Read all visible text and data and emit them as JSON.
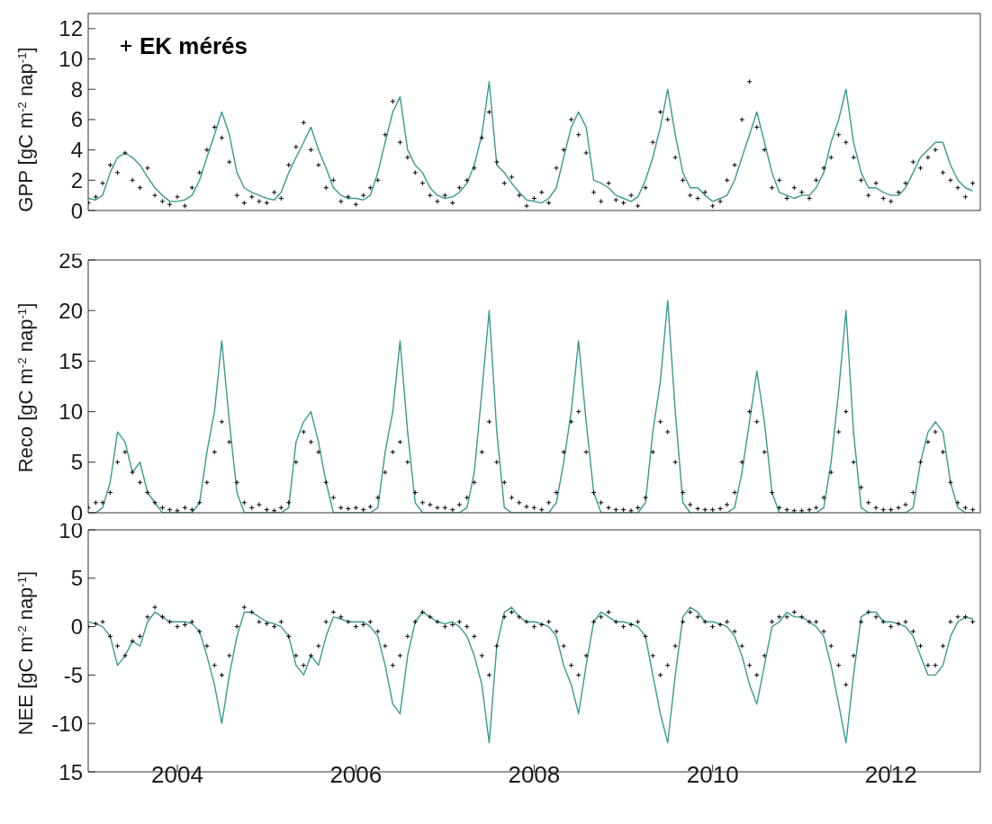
{
  "chart_data": [
    {
      "type": "line",
      "ylabel": "GPP [gC m$^{-2}$ nap$^{-1}$]",
      "xlim": [
        "2003",
        "2013"
      ],
      "xticks": [
        "2004",
        "2006",
        "2008",
        "2010",
        "2012"
      ],
      "ylim": [
        0,
        13
      ],
      "yticks": [
        0,
        2,
        4,
        6,
        8,
        10,
        12
      ],
      "tick_labels": "y",
      "grid": false,
      "legend": "top left",
      "x": [
        "2003-01",
        "2003-02",
        "2003-03",
        "2003-04",
        "2003-05",
        "2003-06",
        "2003-07",
        "2003-08",
        "2003-09",
        "2003-10",
        "2003-11",
        "2003-12",
        "2004-01",
        "2004-02",
        "2004-03",
        "2004-04",
        "2004-05",
        "2004-06",
        "2004-07",
        "2004-08",
        "2004-09",
        "2004-10",
        "2004-11",
        "2004-12",
        "2005-01",
        "2005-02",
        "2005-03",
        "2005-04",
        "2005-05",
        "2005-06",
        "2005-07",
        "2005-08",
        "2005-09",
        "2005-10",
        "2005-11",
        "2005-12",
        "2006-01",
        "2006-02",
        "2006-03",
        "2006-04",
        "2006-05",
        "2006-06",
        "2006-07",
        "2006-08",
        "2006-09",
        "2006-10",
        "2006-11",
        "2006-12",
        "2007-01",
        "2007-02",
        "2007-03",
        "2007-04",
        "2007-05",
        "2007-06",
        "2007-07",
        "2007-08",
        "2007-09",
        "2007-10",
        "2007-11",
        "2007-12",
        "2008-01",
        "2008-02",
        "2008-03",
        "2008-04",
        "2008-05",
        "2008-06",
        "2008-07",
        "2008-08",
        "2008-09",
        "2008-10",
        "2008-11",
        "2008-12",
        "2009-01",
        "2009-02",
        "2009-03",
        "2009-04",
        "2009-05",
        "2009-06",
        "2009-07",
        "2009-08",
        "2009-09",
        "2009-10",
        "2009-11",
        "2009-12",
        "2010-01",
        "2010-02",
        "2010-03",
        "2010-04",
        "2010-05",
        "2010-06",
        "2010-07",
        "2010-08",
        "2010-09",
        "2010-10",
        "2010-11",
        "2010-12",
        "2011-01",
        "2011-02",
        "2011-03",
        "2011-04",
        "2011-05",
        "2011-06",
        "2011-07",
        "2011-08",
        "2011-09",
        "2011-10",
        "2011-11",
        "2011-12",
        "2012-01",
        "2012-02",
        "2012-03",
        "2012-04",
        "2012-05",
        "2012-06",
        "2012-07",
        "2012-08",
        "2012-09",
        "2012-10",
        "2012-11",
        "2012-12"
      ],
      "series": [
        {
          "color": "#3a9a8f",
          "values": [
            0.8,
            0.7,
            1.0,
            2.5,
            3.5,
            3.8,
            3.5,
            3.0,
            2.2,
            1.5,
            1.0,
            0.6,
            0.6,
            0.7,
            1.0,
            2.0,
            3.5,
            5.0,
            6.5,
            5.0,
            2.5,
            1.5,
            1.2,
            1.0,
            0.8,
            0.7,
            1.2,
            2.5,
            3.5,
            4.5,
            5.5,
            4.0,
            2.8,
            1.5,
            1.0,
            0.8,
            0.8,
            0.7,
            1.0,
            2.5,
            4.5,
            6.5,
            7.5,
            4.0,
            3.0,
            2.5,
            1.5,
            1.0,
            0.8,
            0.9,
            1.2,
            1.8,
            3.0,
            5.0,
            8.5,
            3.0,
            2.5,
            1.8,
            1.2,
            0.7,
            0.6,
            0.5,
            0.8,
            1.5,
            3.5,
            5.5,
            6.5,
            5.5,
            2.0,
            1.8,
            1.5,
            1.0,
            0.8,
            0.6,
            0.9,
            2.0,
            3.5,
            5.5,
            8.0,
            5.0,
            2.5,
            1.5,
            1.5,
            1.0,
            0.6,
            0.8,
            1.0,
            2.0,
            3.5,
            5.0,
            6.5,
            4.5,
            2.5,
            1.2,
            1.0,
            0.8,
            1.0,
            1.0,
            1.5,
            2.5,
            4.5,
            6.0,
            8.0,
            4.5,
            2.5,
            1.5,
            1.5,
            1.2,
            1.0,
            1.0,
            1.5,
            2.5,
            3.5,
            4.0,
            4.5,
            4.5,
            3.0,
            2.0,
            1.5,
            1.3
          ]
        },
        {
          "type": "scatter",
          "name": "EK mérés",
          "color": "#000000",
          "marker": "cross",
          "values": [
            0.5,
            0.9,
            1.8,
            3.0,
            2.5,
            3.8,
            2.0,
            1.5,
            2.8,
            1.0,
            0.6,
            0.4,
            0.9,
            0.3,
            1.5,
            2.5,
            4.0,
            5.5,
            4.8,
            3.2,
            1.0,
            0.5,
            0.9,
            0.6,
            0.5,
            1.2,
            0.8,
            3.0,
            4.2,
            5.8,
            4.0,
            3.0,
            1.5,
            2.0,
            0.6,
            0.9,
            0.4,
            1.0,
            1.5,
            2.0,
            5.0,
            7.2,
            4.5,
            3.5,
            2.5,
            1.8,
            1.0,
            0.6,
            1.0,
            0.5,
            1.5,
            2.0,
            2.8,
            4.8,
            6.5,
            3.2,
            1.8,
            2.2,
            1.0,
            0.3,
            0.8,
            1.2,
            0.5,
            2.8,
            4.0,
            6.0,
            5.0,
            3.8,
            1.2,
            0.6,
            1.8,
            0.7,
            0.5,
            1.0,
            0.3,
            1.5,
            4.5,
            6.5,
            6.0,
            3.5,
            2.0,
            1.0,
            0.8,
            1.2,
            0.3,
            0.6,
            2.0,
            3.0,
            6.0,
            8.5,
            5.5,
            4.0,
            1.5,
            2.0,
            0.8,
            1.5,
            1.2,
            0.8,
            2.0,
            2.8,
            3.5,
            5.0,
            4.5,
            3.5,
            2.0,
            1.0,
            1.8,
            0.8,
            0.6,
            1.2,
            1.8,
            3.2,
            2.8,
            3.5,
            4.0,
            2.5,
            2.0,
            1.5,
            0.9,
            1.8
          ]
        }
      ]
    },
    {
      "type": "line",
      "ylabel": "Reco [gC m$^{-2}$ nap$^{-1}$]",
      "xlim": [
        "2003",
        "2013"
      ],
      "xticks": [
        "2004",
        "2006",
        "2008",
        "2010",
        "2012"
      ],
      "ylim": [
        0,
        25
      ],
      "yticks": [
        0,
        5,
        10,
        15,
        20,
        25
      ],
      "tick_labels": "y",
      "grid": false,
      "x": [
        "2003-01",
        "2003-02",
        "2003-03",
        "2003-04",
        "2003-05",
        "2003-06",
        "2003-07",
        "2003-08",
        "2003-09",
        "2003-10",
        "2003-11",
        "2003-12",
        "2004-01",
        "2004-02",
        "2004-03",
        "2004-04",
        "2004-05",
        "2004-06",
        "2004-07",
        "2004-08",
        "2004-09",
        "2004-10",
        "2004-11",
        "2004-12",
        "2005-01",
        "2005-02",
        "2005-03",
        "2005-04",
        "2005-05",
        "2005-06",
        "2005-07",
        "2005-08",
        "2005-09",
        "2005-10",
        "2005-11",
        "2005-12",
        "2006-01",
        "2006-02",
        "2006-03",
        "2006-04",
        "2006-05",
        "2006-06",
        "2006-07",
        "2006-08",
        "2006-09",
        "2006-10",
        "2006-11",
        "2006-12",
        "2007-01",
        "2007-02",
        "2007-03",
        "2007-04",
        "2007-05",
        "2007-06",
        "2007-07",
        "2007-08",
        "2007-09",
        "2007-10",
        "2007-11",
        "2007-12",
        "2008-01",
        "2008-02",
        "2008-03",
        "2008-04",
        "2008-05",
        "2008-06",
        "2008-07",
        "2008-08",
        "2008-09",
        "2008-10",
        "2008-11",
        "2008-12",
        "2009-01",
        "2009-02",
        "2009-03",
        "2009-04",
        "2009-05",
        "2009-06",
        "2009-07",
        "2009-08",
        "2009-09",
        "2009-10",
        "2009-11",
        "2009-12",
        "2010-01",
        "2010-02",
        "2010-03",
        "2010-04",
        "2010-05",
        "2010-06",
        "2010-07",
        "2010-08",
        "2010-09",
        "2010-10",
        "2010-11",
        "2010-12",
        "2011-01",
        "2011-02",
        "2011-03",
        "2011-04",
        "2011-05",
        "2011-06",
        "2011-07",
        "2011-08",
        "2011-09",
        "2011-10",
        "2011-11",
        "2011-12",
        "2012-01",
        "2012-02",
        "2012-03",
        "2012-04",
        "2012-05",
        "2012-06",
        "2012-07",
        "2012-08",
        "2012-09",
        "2012-10",
        "2012-11",
        "2012-12"
      ],
      "series": [
        {
          "color": "#3a9a8f",
          "values": [
            0,
            0,
            0.5,
            3,
            8,
            7,
            4,
            5,
            2,
            1,
            0,
            0,
            0,
            0,
            0,
            1,
            6,
            10,
            17,
            9,
            2,
            0,
            0,
            0,
            0,
            0,
            0,
            0.5,
            7,
            9,
            10,
            7,
            3,
            0,
            0,
            0,
            0,
            0,
            0,
            0.5,
            6,
            10,
            17,
            8,
            1,
            0,
            0,
            0,
            0,
            0,
            0,
            0.5,
            4,
            12,
            20,
            8,
            0.5,
            0,
            0,
            0,
            0,
            0,
            0,
            1,
            5,
            10,
            17,
            9,
            2,
            0,
            0,
            0,
            0,
            0,
            0,
            1,
            8,
            13,
            21,
            10,
            1,
            0,
            0,
            0,
            0,
            0,
            0,
            0.5,
            4,
            9,
            14,
            9,
            2,
            0,
            0,
            0,
            0,
            0,
            0,
            0.5,
            5,
            12,
            20,
            8,
            0.5,
            0,
            0,
            0,
            0,
            0,
            0,
            0.5,
            5,
            8,
            9,
            8,
            3,
            0.5,
            0,
            0
          ]
        },
        {
          "type": "scatter",
          "color": "#000000",
          "marker": "cross",
          "values": [
            0.5,
            1,
            1,
            2,
            5,
            6,
            4,
            3,
            2,
            1,
            0.5,
            0.3,
            0.2,
            0.5,
            0.3,
            1,
            3,
            6,
            9,
            7,
            3,
            1,
            0.5,
            0.8,
            0.3,
            0.2,
            0.5,
            1,
            5,
            8,
            7,
            6,
            3,
            1.5,
            0.5,
            0.4,
            0.5,
            0.3,
            0.6,
            1.5,
            4,
            6,
            7,
            5,
            2,
            1,
            0.8,
            0.5,
            0.5,
            0.3,
            0.8,
            1.5,
            3,
            6,
            9,
            5,
            3,
            1.5,
            1,
            0.6,
            0.5,
            0.3,
            1,
            2,
            6,
            9,
            10,
            6,
            2,
            1,
            0.5,
            0.3,
            0.3,
            0.2,
            0.5,
            1.5,
            6,
            9,
            8,
            5,
            2,
            0.8,
            0.4,
            0.3,
            0.3,
            0.4,
            0.8,
            2,
            5,
            10,
            9,
            6,
            2,
            0.5,
            0.3,
            0.2,
            0.2,
            0.3,
            0.5,
            1.5,
            4,
            8,
            10,
            5,
            2.5,
            1,
            0.5,
            0.3,
            0.3,
            0.5,
            0.8,
            2,
            5,
            7,
            8,
            6,
            3,
            1,
            0.5,
            0.3
          ]
        }
      ]
    },
    {
      "type": "line",
      "ylabel": "NEE [gC m$^{-2}$ nap$^{-1}$]",
      "xlim": [
        "2003",
        "2013"
      ],
      "xticks": [
        "2004",
        "2006",
        "2008",
        "2010",
        "2012"
      ],
      "ylim": [
        -15,
        10
      ],
      "yticks": [
        {
          "value": -15,
          "label": "15"
        },
        -10,
        -5,
        0,
        5,
        10
      ],
      "grid": false,
      "x": [
        "2003-01",
        "2003-02",
        "2003-03",
        "2003-04",
        "2003-05",
        "2003-06",
        "2003-07",
        "2003-08",
        "2003-09",
        "2003-10",
        "2003-11",
        "2003-12",
        "2004-01",
        "2004-02",
        "2004-03",
        "2004-04",
        "2004-05",
        "2004-06",
        "2004-07",
        "2004-08",
        "2004-09",
        "2004-10",
        "2004-11",
        "2004-12",
        "2005-01",
        "2005-02",
        "2005-03",
        "2005-04",
        "2005-05",
        "2005-06",
        "2005-07",
        "2005-08",
        "2005-09",
        "2005-10",
        "2005-11",
        "2005-12",
        "2006-01",
        "2006-02",
        "2006-03",
        "2006-04",
        "2006-05",
        "2006-06",
        "2006-07",
        "2006-08",
        "2006-09",
        "2006-10",
        "2006-11",
        "2006-12",
        "2007-01",
        "2007-02",
        "2007-03",
        "2007-04",
        "2007-05",
        "2007-06",
        "2007-07",
        "2007-08",
        "2007-09",
        "2007-10",
        "2007-11",
        "2007-12",
        "2008-01",
        "2008-02",
        "2008-03",
        "2008-04",
        "2008-05",
        "2008-06",
        "2008-07",
        "2008-08",
        "2008-09",
        "2008-10",
        "2008-11",
        "2008-12",
        "2009-01",
        "2009-02",
        "2009-03",
        "2009-04",
        "2009-05",
        "2009-06",
        "2009-07",
        "2009-08",
        "2009-09",
        "2009-10",
        "2009-11",
        "2009-12",
        "2010-01",
        "2010-02",
        "2010-03",
        "2010-04",
        "2010-05",
        "2010-06",
        "2010-07",
        "2010-08",
        "2010-09",
        "2010-10",
        "2010-11",
        "2010-12",
        "2011-01",
        "2011-02",
        "2011-03",
        "2011-04",
        "2011-05",
        "2011-06",
        "2011-07",
        "2011-08",
        "2011-09",
        "2011-10",
        "2011-11",
        "2011-12",
        "2012-01",
        "2012-02",
        "2012-03",
        "2012-04",
        "2012-05",
        "2012-06",
        "2012-07",
        "2012-08",
        "2012-09",
        "2012-10",
        "2012-11",
        "2012-12"
      ],
      "series": [
        {
          "color": "#3a9a8f",
          "values": [
            0.5,
            0.3,
            0,
            -1,
            -4,
            -3,
            -1.5,
            -2,
            0.5,
            1.5,
            1,
            0.5,
            0.5,
            0.5,
            0.3,
            -0.5,
            -3,
            -6,
            -10,
            -5,
            -1,
            1.5,
            1.5,
            1,
            0.5,
            0.3,
            0,
            -1,
            -4,
            -5,
            -3,
            -4,
            -1,
            1,
            0.8,
            0.5,
            0.5,
            0.5,
            0,
            -1,
            -4,
            -8,
            -9,
            -3,
            0.5,
            1.5,
            1,
            0.5,
            0.3,
            0.5,
            0,
            -1,
            -3,
            -6,
            -12,
            -2,
            1.5,
            2,
            1,
            0.5,
            0.5,
            0.3,
            0,
            -1,
            -4,
            -6,
            -9,
            -4,
            0.5,
            1.5,
            1,
            0.5,
            0.5,
            0.3,
            0,
            -1,
            -5,
            -9,
            -12,
            -5,
            1,
            2,
            1.5,
            0.5,
            0.5,
            0.3,
            0,
            -1,
            -3,
            -6,
            -8,
            -4,
            0,
            0.5,
            1.5,
            1,
            1,
            0.5,
            0,
            -1,
            -4,
            -8,
            -12,
            -5,
            1,
            1.5,
            1.5,
            0.5,
            0.5,
            0.3,
            0,
            -1,
            -3,
            -5,
            -5,
            -4,
            -1,
            0.5,
            1,
            0.8
          ]
        },
        {
          "type": "scatter",
          "color": "#000000",
          "marker": "cross",
          "values": [
            0,
            0.3,
            0.5,
            -1,
            -2,
            -3,
            -1.5,
            -1,
            1,
            2,
            1,
            0.5,
            0,
            0.2,
            0.5,
            -0.5,
            -2,
            -4,
            -5,
            -3,
            0,
            2,
            1.5,
            0.5,
            0.3,
            0,
            0.5,
            -1,
            -3,
            -4,
            -3,
            -2,
            0.5,
            1.5,
            1,
            0.5,
            0,
            0.2,
            0.5,
            -0.5,
            -2,
            -4,
            -3,
            -1,
            0.5,
            1.5,
            1,
            0.5,
            0,
            0.2,
            0.5,
            0,
            -1,
            -3,
            -5,
            -2,
            1,
            1.5,
            1,
            0.5,
            0,
            0.2,
            0.5,
            -0.5,
            -2,
            -4,
            -5,
            -3,
            0.5,
            1,
            1.5,
            0.5,
            0,
            0.2,
            0.5,
            -1,
            -3,
            -5,
            -4,
            -2,
            0.5,
            1.5,
            1,
            0.5,
            0,
            0.2,
            0.5,
            -0.5,
            -2,
            -4,
            -5,
            -3,
            0.5,
            1,
            1,
            1.5,
            1,
            0.5,
            0.5,
            -0.5,
            -2,
            -4,
            -6,
            -3,
            0.5,
            1.5,
            1,
            0.5,
            0,
            0.3,
            0.5,
            -0.5,
            -2,
            -4,
            -4,
            -2,
            0.5,
            1,
            1,
            0.5
          ]
        }
      ]
    }
  ]
}
